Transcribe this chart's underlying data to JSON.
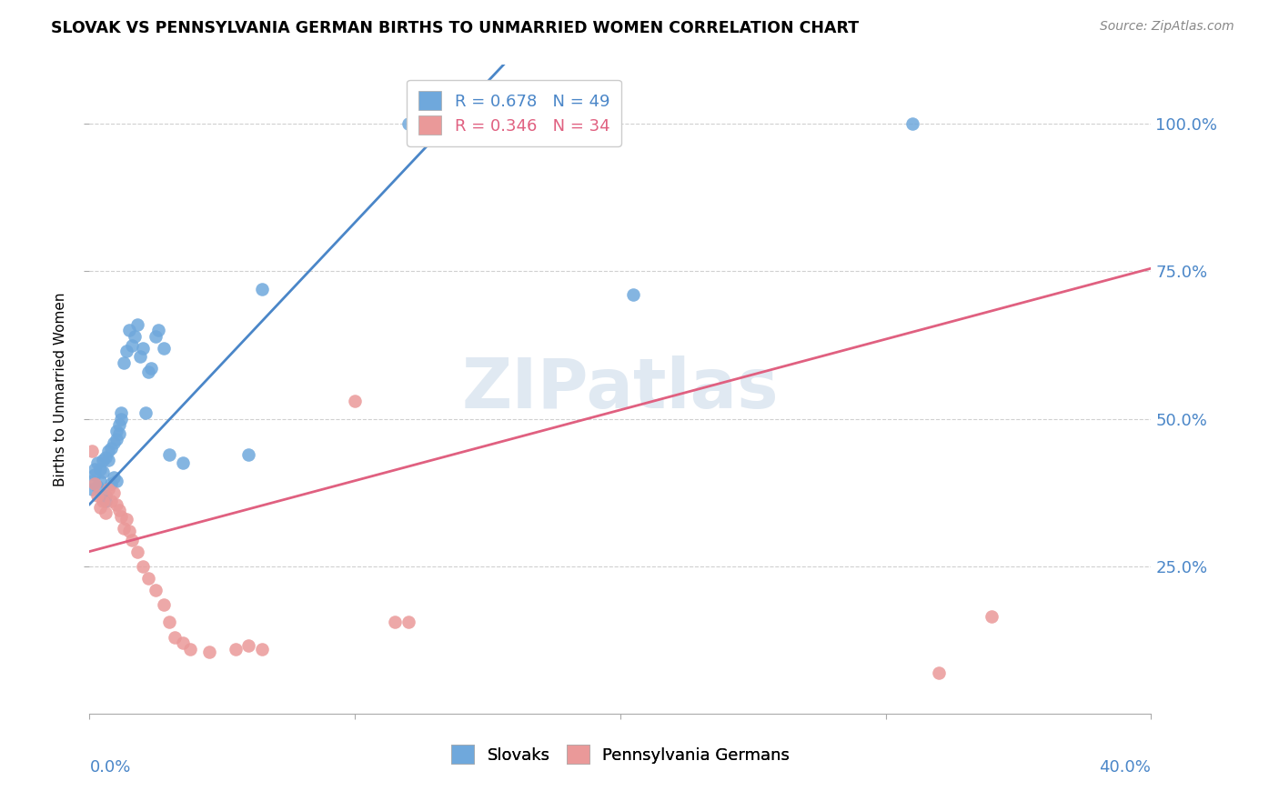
{
  "title": "SLOVAK VS PENNSYLVANIA GERMAN BIRTHS TO UNMARRIED WOMEN CORRELATION CHART",
  "source": "Source: ZipAtlas.com",
  "ylabel": "Births to Unmarried Women",
  "watermark": "ZIPatlas",
  "blue_color": "#6fa8dc",
  "pink_color": "#ea9999",
  "blue_line_color": "#4a86c8",
  "pink_line_color": "#e06080",
  "legend_blue": "R = 0.678   N = 49",
  "legend_pink": "R = 0.346   N = 34",
  "xlim": [
    0.0,
    0.4
  ],
  "ylim": [
    0.0,
    1.1
  ],
  "x_ticks": [
    0.0,
    0.1,
    0.2,
    0.3,
    0.4
  ],
  "y_ticks": [
    0.25,
    0.5,
    0.75,
    1.0
  ],
  "y_tick_labels": [
    "25.0%",
    "50.0%",
    "75.0%",
    "100.0%"
  ],
  "sk_line_x0": 0.0,
  "sk_line_y0": 0.355,
  "sk_line_x1": 0.135,
  "sk_line_y1": 1.0,
  "pg_line_x0": 0.0,
  "pg_line_y0": 0.275,
  "pg_line_x1": 0.4,
  "pg_line_y1": 0.755,
  "sk_x": [
    0.001,
    0.001,
    0.002,
    0.002,
    0.003,
    0.003,
    0.004,
    0.004,
    0.005,
    0.005,
    0.006,
    0.006,
    0.006,
    0.007,
    0.007,
    0.008,
    0.008,
    0.009,
    0.009,
    0.01,
    0.01,
    0.01,
    0.011,
    0.011,
    0.012,
    0.012,
    0.013,
    0.014,
    0.015,
    0.016,
    0.017,
    0.018,
    0.019,
    0.02,
    0.021,
    0.022,
    0.023,
    0.025,
    0.026,
    0.028,
    0.03,
    0.035,
    0.06,
    0.065,
    0.12,
    0.125,
    0.125,
    0.205,
    0.31
  ],
  "sk_y": [
    0.38,
    0.395,
    0.405,
    0.415,
    0.385,
    0.425,
    0.395,
    0.415,
    0.41,
    0.43,
    0.36,
    0.37,
    0.435,
    0.43,
    0.445,
    0.39,
    0.45,
    0.4,
    0.46,
    0.395,
    0.465,
    0.48,
    0.475,
    0.49,
    0.5,
    0.51,
    0.595,
    0.615,
    0.65,
    0.625,
    0.64,
    0.66,
    0.605,
    0.62,
    0.51,
    0.58,
    0.585,
    0.64,
    0.65,
    0.62,
    0.44,
    0.425,
    0.44,
    0.72,
    1.0,
    1.0,
    1.0,
    0.71,
    1.0
  ],
  "pg_x": [
    0.001,
    0.002,
    0.003,
    0.004,
    0.005,
    0.006,
    0.007,
    0.008,
    0.009,
    0.01,
    0.011,
    0.012,
    0.013,
    0.014,
    0.015,
    0.016,
    0.018,
    0.02,
    0.022,
    0.025,
    0.028,
    0.03,
    0.032,
    0.035,
    0.038,
    0.045,
    0.055,
    0.06,
    0.065,
    0.1,
    0.115,
    0.12,
    0.32,
    0.34
  ],
  "pg_y": [
    0.445,
    0.39,
    0.37,
    0.35,
    0.36,
    0.34,
    0.38,
    0.36,
    0.375,
    0.355,
    0.345,
    0.335,
    0.315,
    0.33,
    0.31,
    0.295,
    0.275,
    0.25,
    0.23,
    0.21,
    0.185,
    0.155,
    0.13,
    0.12,
    0.11,
    0.105,
    0.11,
    0.115,
    0.11,
    0.53,
    0.155,
    0.155,
    0.07,
    0.165
  ]
}
